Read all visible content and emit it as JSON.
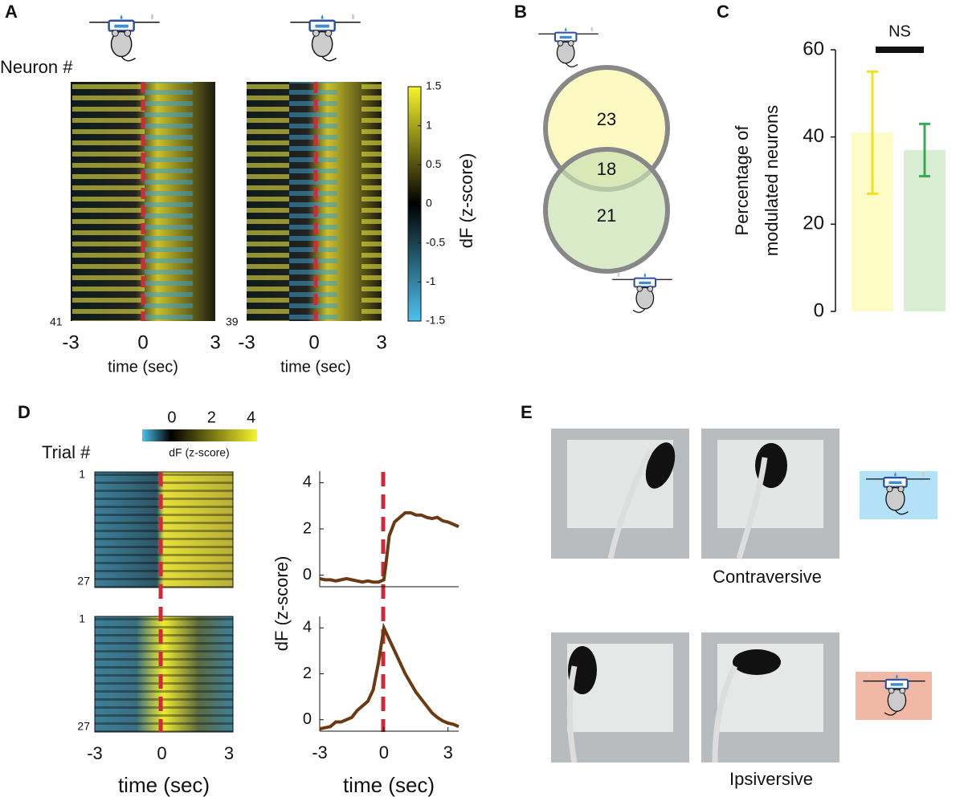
{
  "panel_letters": [
    "A",
    "B",
    "C",
    "D",
    "E"
  ],
  "panel_a": {
    "ylabel": "Neuron #",
    "heatmaps": [
      {
        "count_label": "41"
      },
      {
        "count_label": "39"
      }
    ],
    "xlim": [
      -3,
      3
    ],
    "xticks": [
      -3,
      0,
      3
    ],
    "xlabel": "time (sec)",
    "colorbar": {
      "label": "dF (z-score)",
      "lim": [
        -1.5,
        1.5
      ],
      "ticks": [
        1.5,
        1,
        0.5,
        0,
        -0.5,
        -1,
        -1.5
      ]
    }
  },
  "panel_b": {
    "venn": {
      "top_only": "23",
      "overlap": "18",
      "bottom_only": "21"
    }
  },
  "panel_d": {
    "ylabel": "Trial #",
    "row_labels": [
      "1",
      "27",
      "1",
      "27"
    ],
    "xlim": [
      -3,
      3
    ],
    "xticks": [
      -3,
      0,
      3
    ],
    "xlabel": "time (sec)",
    "colorbar": {
      "label": "dF (z-score)",
      "lim": [
        -1.5,
        4.3
      ],
      "ticks": [
        0,
        2,
        4
      ]
    },
    "line_ylabel": "dF (z-score)",
    "line_xlabel": "time (sec)"
  },
  "panel_e": {
    "labels": [
      "Contraversive",
      "Ipsiversive"
    ]
  },
  "chart_data": [
    {
      "type": "bar",
      "ylabel_lines": [
        "Percentage of",
        "modulated neurons"
      ],
      "annotation": "NS",
      "categories": [
        null,
        null
      ],
      "values": [
        41,
        37
      ],
      "errors": [
        14,
        6
      ],
      "colors": [
        "#fdfbc6",
        "#d9edd2"
      ],
      "error_colors": [
        "#f0e21c",
        "#3caa55"
      ],
      "ylim": [
        0,
        60
      ],
      "yticks": [
        0,
        20,
        40,
        60
      ]
    },
    {
      "type": "line",
      "color": "#6b3a12",
      "x": [
        -3,
        -2.75,
        -2.5,
        -2.25,
        -2,
        -1.75,
        -1.5,
        -1.25,
        -1,
        -0.75,
        -0.5,
        -0.25,
        0,
        0.1,
        0.25,
        0.5,
        0.75,
        1,
        1.25,
        1.5,
        1.75,
        2,
        2.25,
        2.5,
        2.75,
        3,
        3.25,
        3.5
      ],
      "values": [
        -0.15,
        -0.2,
        -0.2,
        -0.25,
        -0.2,
        -0.15,
        -0.2,
        -0.25,
        -0.3,
        -0.25,
        -0.3,
        -0.3,
        -0.2,
        0.5,
        1.7,
        2.3,
        2.5,
        2.7,
        2.7,
        2.6,
        2.6,
        2.5,
        2.45,
        2.5,
        2.35,
        2.3,
        2.2,
        2.1
      ],
      "xlim": [
        -3,
        3.5
      ],
      "xticks": [
        -3,
        0,
        3
      ],
      "ylim": [
        -0.5,
        4.5
      ],
      "yticks": [
        0,
        2,
        4
      ]
    },
    {
      "type": "line",
      "color": "#6b3a12",
      "x": [
        -3,
        -2.75,
        -2.5,
        -2.25,
        -2,
        -1.75,
        -1.5,
        -1.25,
        -1,
        -0.75,
        -0.5,
        -0.25,
        0,
        0.25,
        0.5,
        0.75,
        1,
        1.25,
        1.5,
        1.75,
        2,
        2.25,
        2.5,
        2.75,
        3,
        3.25,
        3.5
      ],
      "values": [
        -0.4,
        -0.35,
        -0.3,
        -0.1,
        -0.1,
        0,
        0.1,
        0.4,
        0.6,
        0.8,
        1.3,
        2.5,
        4,
        3.5,
        3,
        2.5,
        2,
        1.6,
        1.2,
        0.9,
        0.6,
        0.3,
        0.1,
        -0.05,
        -0.15,
        -0.2,
        -0.3
      ],
      "xlim": [
        -3,
        3.5
      ],
      "xticks": [
        -3,
        0,
        3
      ],
      "ylim": [
        -0.5,
        4.5
      ],
      "yticks": [
        0,
        2,
        4
      ]
    }
  ]
}
